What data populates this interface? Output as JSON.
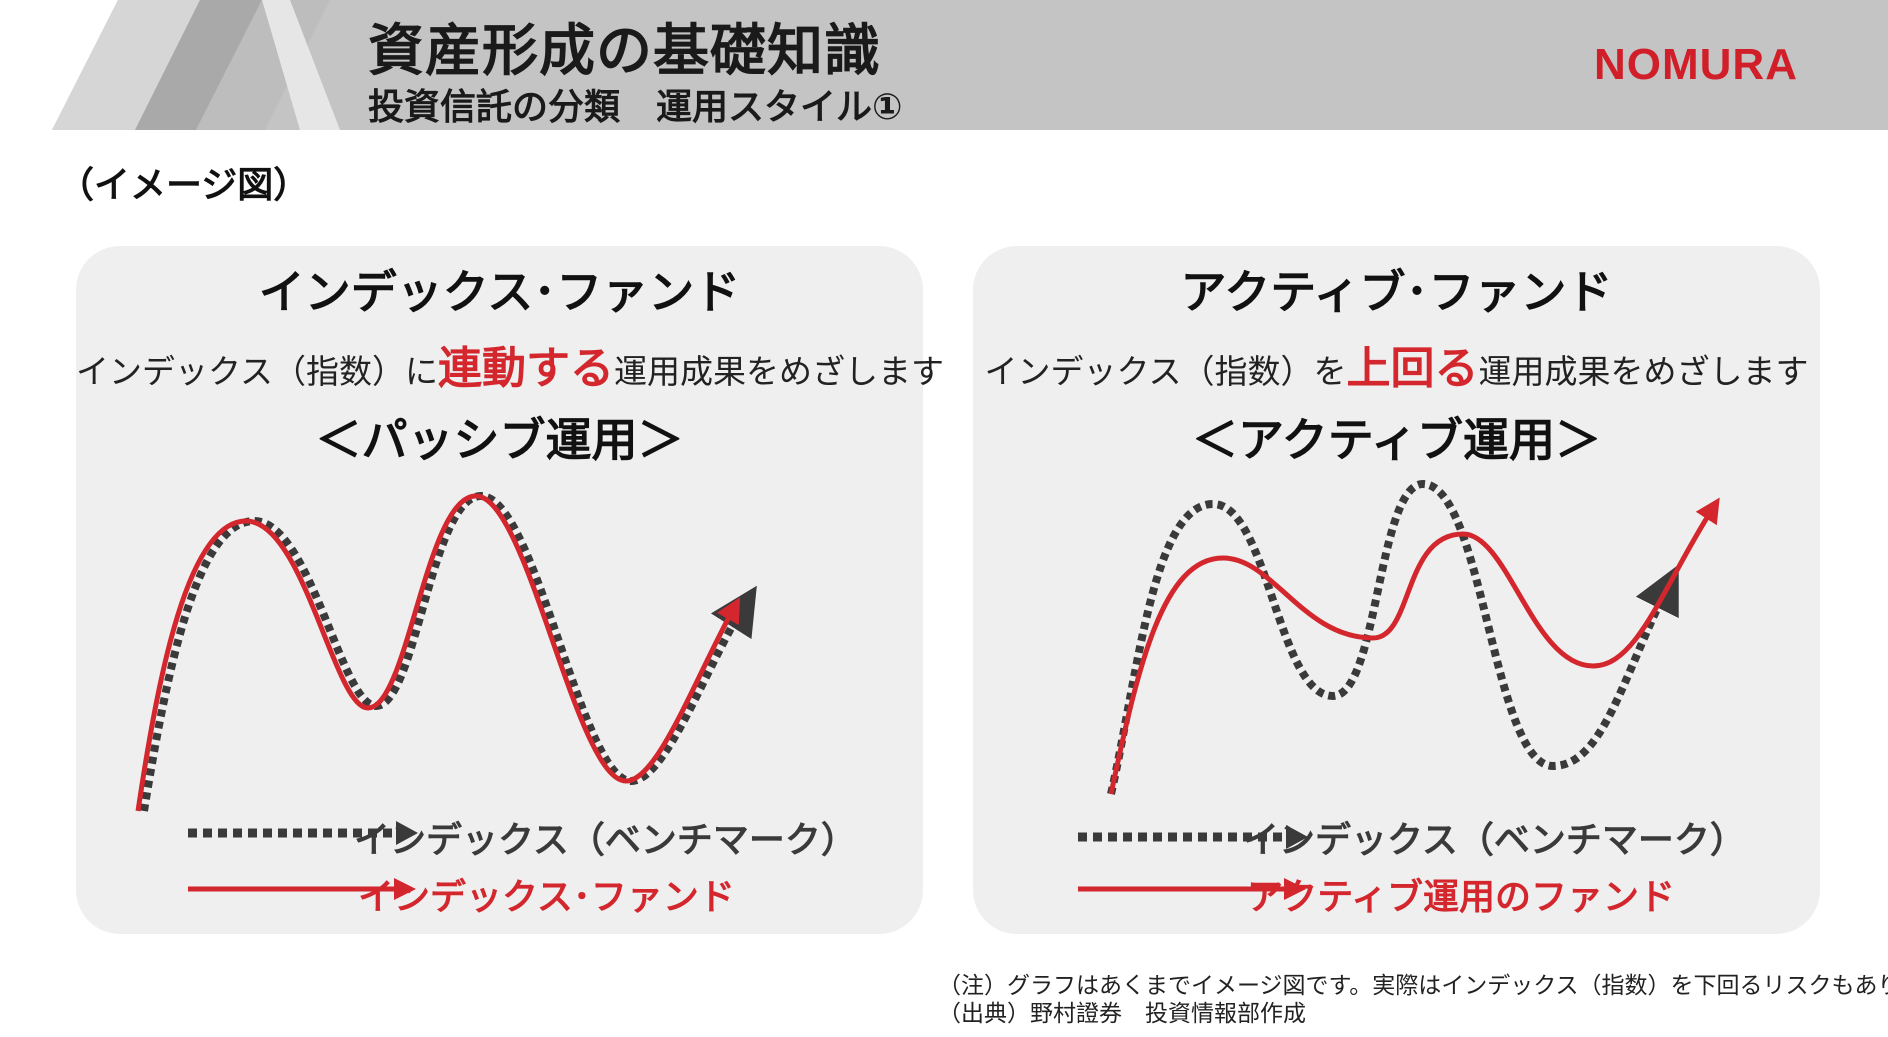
{
  "header": {
    "title": "資産形成の基礎知識",
    "subtitle": "投資信託の分類　運用スタイル①",
    "logo": "NOMURA"
  },
  "image_label": "（イメージ図）",
  "panels": {
    "left": {
      "title": "インデックス･ファンド",
      "desc_prefix": "インデックス（指数）に",
      "desc_emphasis": "連動する",
      "desc_suffix": "運用成果をめざします",
      "style_label": "＜パッシブ運用＞",
      "legend": {
        "benchmark": "インデックス（ベンチマーク）",
        "fund": "インデックス･ファンド"
      }
    },
    "right": {
      "title": "アクティブ･ファンド",
      "desc_prefix": "インデックス（指数）を",
      "desc_emphasis": "上回る",
      "desc_suffix": "運用成果をめざします",
      "style_label": "＜アクティブ運用＞",
      "legend": {
        "benchmark": "インデックス（ベンチマーク）",
        "fund": "アクティブ運用のファンド"
      }
    }
  },
  "notes": {
    "note": "（注）グラフはあくまでイメージ図です。実際はインデックス（指数）を下回るリスクもあります。",
    "source": "（出典）野村證券　投資情報部作成"
  },
  "colors": {
    "accent_red": "#d3262d",
    "dark_gray": "#3a3a3a",
    "panel_bg": "#efefef",
    "header_bg": "#c6c6c6"
  }
}
